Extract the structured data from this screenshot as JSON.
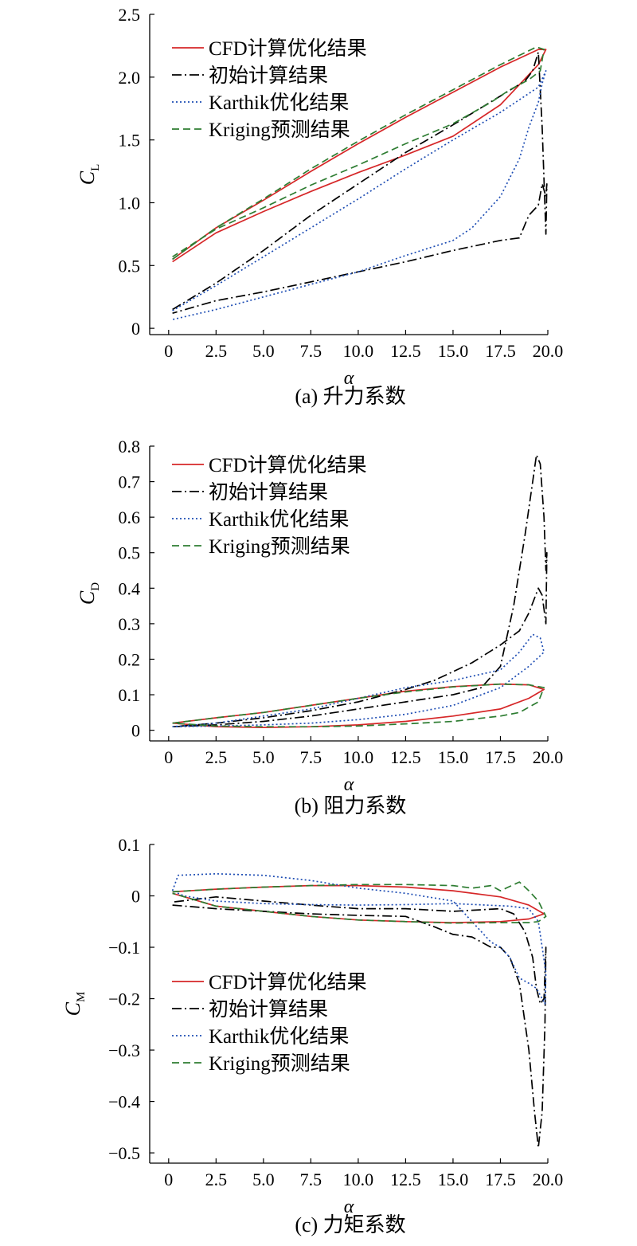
{
  "chart_data": [
    {
      "id": "lift",
      "type": "line",
      "caption": "(a) 升力系数",
      "ylabel_main": "C",
      "ylabel_sub": "L",
      "xlabel": "α",
      "xlim": [
        -1,
        20
      ],
      "ylim": [
        -0.05,
        2.5
      ],
      "xticks": [
        "0",
        "2.5",
        "5.0",
        "7.5",
        "10.0",
        "12.5",
        "15.0",
        "17.5",
        "20.0"
      ],
      "yticks": [
        "0",
        "0.5",
        "1.0",
        "1.5",
        "2.0",
        "2.5"
      ],
      "legend_position": "top-left",
      "series": [
        {
          "name": "CFD计算优化结果",
          "color": "#d62728",
          "dash": "solid",
          "x": [
            0.2,
            2.5,
            5.0,
            7.5,
            10.0,
            12.5,
            15.0,
            17.5,
            19.5,
            19.9,
            19.5,
            17.5,
            15.0,
            12.5,
            10.0,
            7.5,
            5.0,
            2.5,
            0.2
          ],
          "y": [
            0.55,
            0.8,
            1.02,
            1.25,
            1.47,
            1.68,
            1.88,
            2.08,
            2.22,
            2.22,
            2.1,
            1.78,
            1.53,
            1.38,
            1.24,
            1.09,
            0.93,
            0.76,
            0.53
          ]
        },
        {
          "name": "初始计算结果",
          "color": "#000000",
          "dash": "dashdot",
          "x": [
            0.2,
            2.5,
            5.0,
            7.5,
            10.0,
            12.5,
            15.0,
            17.5,
            18.8,
            19.2,
            19.5,
            19.7,
            19.9,
            19.95,
            19.9,
            19.7,
            19.5,
            19.0,
            18.5,
            17.5,
            15.0,
            12.5,
            10.0,
            7.5,
            5.0,
            2.5,
            0.2
          ],
          "y": [
            0.15,
            0.36,
            0.62,
            0.9,
            1.15,
            1.4,
            1.62,
            1.85,
            1.97,
            2.05,
            2.2,
            1.6,
            0.75,
            1.15,
            1.05,
            1.15,
            0.98,
            0.9,
            0.72,
            0.7,
            0.62,
            0.53,
            0.45,
            0.37,
            0.29,
            0.22,
            0.12
          ]
        },
        {
          "name": "Karthik优化结果",
          "color": "#1f4eb4",
          "dash": "dotted",
          "x": [
            0.2,
            2.5,
            5.0,
            7.5,
            10.0,
            12.5,
            15.0,
            17.5,
            19.5,
            19.9,
            19.7,
            19.5,
            19.0,
            18.5,
            17.5,
            16.0,
            15.0,
            12.5,
            10.0,
            7.5,
            5.0,
            2.5,
            0.2
          ],
          "y": [
            0.14,
            0.34,
            0.57,
            0.8,
            1.03,
            1.27,
            1.5,
            1.72,
            1.92,
            2.05,
            1.95,
            1.8,
            1.6,
            1.35,
            1.05,
            0.8,
            0.7,
            0.58,
            0.45,
            0.35,
            0.25,
            0.15,
            0.07
          ]
        },
        {
          "name": "Kriging预测结果",
          "color": "#2e7d32",
          "dash": "dashed",
          "x": [
            0.2,
            2.5,
            5.0,
            7.5,
            10.0,
            12.5,
            15.0,
            17.5,
            19.4,
            19.8,
            19.6,
            19.0,
            18.0,
            17.0,
            15.0,
            12.5,
            10.0,
            7.5,
            5.0,
            2.5,
            0.2
          ],
          "y": [
            0.55,
            0.8,
            1.03,
            1.27,
            1.49,
            1.7,
            1.9,
            2.1,
            2.24,
            2.22,
            2.05,
            1.98,
            1.9,
            1.8,
            1.63,
            1.47,
            1.3,
            1.14,
            0.96,
            0.79,
            0.57
          ]
        }
      ]
    },
    {
      "id": "drag",
      "type": "line",
      "caption": "(b) 阻力系数",
      "ylabel_main": "C",
      "ylabel_sub": "D",
      "xlabel": "α",
      "xlim": [
        -1,
        20
      ],
      "ylim": [
        -0.03,
        0.8
      ],
      "xticks": [
        "0",
        "2.5",
        "5.0",
        "7.5",
        "10.0",
        "12.5",
        "15.0",
        "17.5",
        "20.0"
      ],
      "yticks": [
        "0",
        "0.1",
        "0.2",
        "0.3",
        "0.4",
        "0.5",
        "0.6",
        "0.7",
        "0.8"
      ],
      "legend_position": "top-left",
      "series": [
        {
          "name": "CFD计算优化结果",
          "color": "#d62728",
          "dash": "solid",
          "x": [
            0.2,
            2.5,
            5.0,
            7.5,
            10.0,
            12.5,
            15.0,
            17.5,
            19.0,
            19.8,
            19.0,
            17.5,
            15.0,
            12.5,
            10.0,
            7.5,
            5.0,
            2.5,
            0.2
          ],
          "y": [
            0.02,
            0.035,
            0.05,
            0.07,
            0.09,
            0.11,
            0.123,
            0.13,
            0.128,
            0.115,
            0.09,
            0.06,
            0.04,
            0.025,
            0.015,
            0.01,
            0.008,
            0.01,
            0.02
          ]
        },
        {
          "name": "初始计算结果",
          "color": "#000000",
          "dash": "dashdot",
          "x": [
            0.2,
            2.5,
            5.0,
            7.5,
            10.0,
            12.5,
            15.0,
            16.5,
            17.5,
            18.2,
            18.8,
            19.2,
            19.4,
            19.6,
            19.8,
            19.9,
            19.95,
            19.9,
            19.7,
            19.5,
            19.0,
            18.5,
            17.5,
            16.0,
            14.0,
            12.5,
            10.0,
            7.5,
            5.0,
            2.5,
            0.2
          ],
          "y": [
            0.01,
            0.015,
            0.025,
            0.04,
            0.06,
            0.08,
            0.1,
            0.12,
            0.18,
            0.35,
            0.55,
            0.7,
            0.775,
            0.75,
            0.6,
            0.45,
            0.5,
            0.3,
            0.38,
            0.4,
            0.33,
            0.28,
            0.24,
            0.19,
            0.14,
            0.115,
            0.08,
            0.055,
            0.035,
            0.02,
            0.01
          ]
        },
        {
          "name": "Karthik优化结果",
          "color": "#1f4eb4",
          "dash": "dotted",
          "x": [
            0.2,
            2.5,
            5.0,
            7.5,
            10.0,
            12.5,
            15.0,
            17.5,
            19.0,
            19.8,
            19.6,
            19.2,
            18.5,
            17.5,
            15.0,
            12.5,
            10.0,
            7.5,
            5.0,
            2.5,
            0.2
          ],
          "y": [
            0.01,
            0.012,
            0.015,
            0.02,
            0.03,
            0.045,
            0.07,
            0.12,
            0.18,
            0.22,
            0.26,
            0.27,
            0.22,
            0.17,
            0.14,
            0.12,
            0.09,
            0.06,
            0.04,
            0.02,
            0.01
          ]
        },
        {
          "name": "Kriging预测结果",
          "color": "#2e7d32",
          "dash": "dashed",
          "x": [
            0.2,
            2.5,
            5.0,
            7.5,
            10.0,
            12.5,
            15.0,
            17.5,
            19.0,
            19.8,
            19.5,
            18.5,
            17.5,
            15.0,
            12.5,
            10.0,
            7.5,
            5.0,
            2.5,
            0.2
          ],
          "y": [
            0.02,
            0.035,
            0.05,
            0.07,
            0.09,
            0.108,
            0.122,
            0.13,
            0.128,
            0.12,
            0.08,
            0.05,
            0.04,
            0.025,
            0.018,
            0.012,
            0.01,
            0.01,
            0.012,
            0.02
          ]
        }
      ]
    },
    {
      "id": "moment",
      "type": "line",
      "caption": "(c) 力矩系数",
      "ylabel_main": "C",
      "ylabel_sub": "M",
      "xlabel": "α",
      "xlim": [
        -1,
        20
      ],
      "ylim": [
        -0.52,
        0.1
      ],
      "xticks": [
        "0",
        "2.5",
        "5.0",
        "7.5",
        "10.0",
        "12.5",
        "15.0",
        "17.5",
        "20.0"
      ],
      "yticks": [
        "0.1",
        "0",
        "−0.1",
        "−0.2",
        "−0.3",
        "−0.4",
        "−0.5"
      ],
      "legend_position": "lower-left",
      "series": [
        {
          "name": "CFD计算优化结果",
          "color": "#d62728",
          "dash": "solid",
          "x": [
            0.2,
            2.5,
            5.0,
            7.5,
            10.0,
            12.5,
            15.0,
            17.5,
            19.0,
            19.8,
            19.0,
            17.5,
            15.0,
            12.5,
            10.0,
            7.5,
            5.0,
            2.5,
            0.2
          ],
          "y": [
            0.008,
            0.013,
            0.017,
            0.02,
            0.02,
            0.017,
            0.01,
            -0.002,
            -0.018,
            -0.035,
            -0.045,
            -0.05,
            -0.052,
            -0.05,
            -0.047,
            -0.04,
            -0.03,
            -0.02,
            0.005
          ]
        },
        {
          "name": "初始计算结果",
          "color": "#000000",
          "dash": "dashdot",
          "x": [
            0.2,
            2.5,
            5.0,
            7.5,
            10.0,
            12.5,
            14.0,
            15.0,
            16.0,
            17.0,
            17.5,
            18.0,
            18.5,
            19.0,
            19.3,
            19.5,
            19.7,
            19.85,
            19.9,
            19.8,
            19.6,
            19.4,
            19.2,
            18.8,
            18.2,
            17.5,
            15.0,
            12.5,
            10.0,
            7.5,
            5.0,
            2.5,
            0.2
          ],
          "y": [
            -0.018,
            -0.025,
            -0.03,
            -0.035,
            -0.038,
            -0.04,
            -0.06,
            -0.075,
            -0.08,
            -0.1,
            -0.1,
            -0.12,
            -0.17,
            -0.3,
            -0.42,
            -0.49,
            -0.42,
            -0.25,
            -0.1,
            -0.2,
            -0.21,
            -0.18,
            -0.12,
            -0.07,
            -0.035,
            -0.025,
            -0.03,
            -0.025,
            -0.025,
            -0.018,
            -0.01,
            -0.002,
            -0.012
          ]
        },
        {
          "name": "Karthik优化结果",
          "color": "#1f4eb4",
          "dash": "dotted",
          "x": [
            0.2,
            0.5,
            2.5,
            5.0,
            7.5,
            10.0,
            12.5,
            15.0,
            16.0,
            17.0,
            17.5,
            18.0,
            18.5,
            19.0,
            19.4,
            19.7,
            19.85,
            19.9,
            19.7,
            19.5,
            19.0,
            18.0,
            15.0,
            12.5,
            10.0,
            7.5,
            5.0,
            2.5,
            0.8,
            0.2
          ],
          "y": [
            0.01,
            0.04,
            0.043,
            0.04,
            0.03,
            0.015,
            0.005,
            -0.01,
            -0.05,
            -0.09,
            -0.1,
            -0.12,
            -0.16,
            -0.17,
            -0.18,
            -0.2,
            -0.21,
            -0.15,
            -0.1,
            -0.05,
            -0.025,
            -0.02,
            -0.015,
            -0.017,
            -0.018,
            -0.017,
            -0.015,
            -0.01,
            0.0,
            0.01
          ]
        },
        {
          "name": "Kriging预测结果",
          "color": "#2e7d32",
          "dash": "dashed",
          "x": [
            0.2,
            2.5,
            5.0,
            7.5,
            10.0,
            12.5,
            15.0,
            16.0,
            17.0,
            17.5,
            18.5,
            19.0,
            19.5,
            19.9,
            19.5,
            19.0,
            17.5,
            15.0,
            12.5,
            10.0,
            7.5,
            5.0,
            2.5,
            0.2
          ],
          "y": [
            0.008,
            0.013,
            0.017,
            0.02,
            0.022,
            0.022,
            0.02,
            0.015,
            0.02,
            0.01,
            0.027,
            0.01,
            -0.01,
            -0.04,
            -0.05,
            -0.052,
            -0.052,
            -0.053,
            -0.05,
            -0.047,
            -0.04,
            -0.03,
            -0.02,
            0.005
          ]
        }
      ]
    }
  ]
}
